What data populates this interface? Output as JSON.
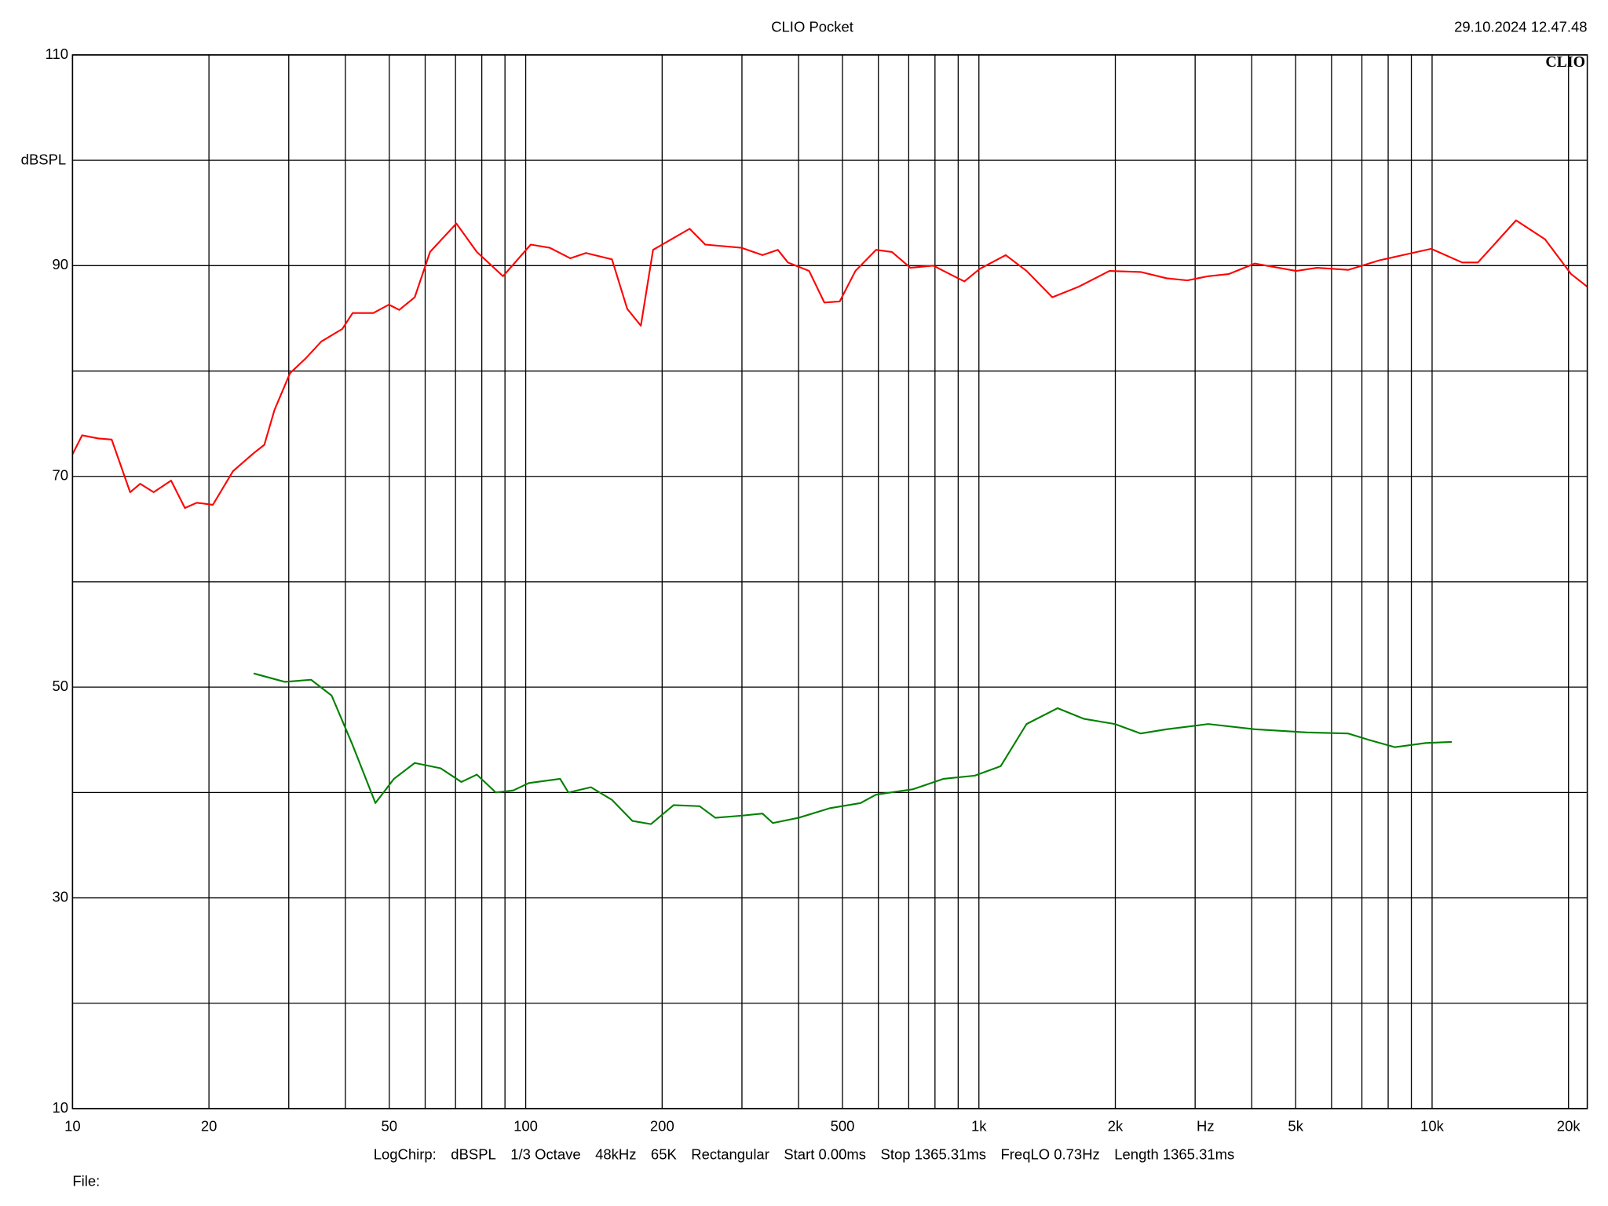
{
  "chart_data": {
    "type": "line",
    "title": "CLIO Pocket",
    "timestamp": "29.10.2024 12.47.48",
    "logo": "CLIO",
    "ylabel": "dBSPL",
    "xlabel": "Hz",
    "x_log": true,
    "grid": true,
    "xlim": [
      10,
      22000
    ],
    "ylim": [
      10,
      110
    ],
    "xticks": [
      10,
      20,
      50,
      100,
      200,
      500,
      {
        "value": 1000,
        "label": "1k"
      },
      {
        "value": 2000,
        "label": "2k"
      },
      {
        "value": 5000,
        "label": "5k"
      },
      {
        "value": 10000,
        "label": "10k"
      },
      {
        "value": 20000,
        "label": "20k"
      }
    ],
    "xminor": [
      30,
      40,
      60,
      70,
      80,
      90,
      300,
      400,
      600,
      700,
      800,
      900,
      3000,
      4000,
      6000,
      7000,
      8000,
      9000
    ],
    "yticks": [
      10,
      30,
      50,
      70,
      90,
      110
    ],
    "yminor": [
      20,
      40,
      60,
      80,
      100
    ],
    "series": [
      {
        "color": "#ff0000",
        "x": [
          10,
          10.5,
          11.4,
          12.2,
          13.4,
          14.1,
          15.1,
          16.5,
          17.7,
          18.8,
          20.4,
          22.6,
          25.1,
          26.5,
          27.9,
          30.2,
          32.7,
          35.4,
          39.4,
          41.5,
          46.1,
          49.9,
          52.6,
          56.9,
          61.5,
          70.3,
          78.0,
          89.1,
          102.6,
          113,
          125.4,
          135.8,
          155,
          167.5,
          179.5,
          191,
          230,
          249,
          299,
          333,
          360,
          379,
          422,
          456,
          493,
          534,
          593,
          643,
          706,
          793,
          881,
          929,
          1005,
          1146,
          1274,
          1452,
          1660,
          1941,
          2275,
          2596,
          2884,
          3206,
          3556,
          4063,
          5012,
          5572,
          6531,
          7643,
          9954,
          11650,
          12620,
          15320,
          17750,
          20270,
          22000
        ],
        "values": [
          72.1,
          73.9,
          73.6,
          73.5,
          68.5,
          69.3,
          68.5,
          69.6,
          67,
          67.5,
          67.3,
          70.5,
          72.2,
          73,
          76.3,
          79.8,
          81.2,
          82.8,
          84,
          85.5,
          85.5,
          86.3,
          85.8,
          87,
          91.3,
          94,
          91.3,
          89,
          92,
          91.7,
          90.7,
          91.2,
          90.6,
          85.9,
          84.3,
          91.5,
          93.5,
          92,
          91.7,
          91,
          91.5,
          90.3,
          89.5,
          86.5,
          86.6,
          89.5,
          91.5,
          91.3,
          89.8,
          90,
          89,
          88.5,
          89.7,
          91,
          89.5,
          87,
          88,
          89.5,
          89.4,
          88.8,
          88.6,
          89,
          89.2,
          90.2,
          89.5,
          89.8,
          89.6,
          90.5,
          91.6,
          90.3,
          90.3,
          94.3,
          92.5,
          89.2,
          88
        ]
      },
      {
        "color": "#008000",
        "x": [
          25.1,
          29.4,
          33.6,
          37.3,
          41.5,
          46.6,
          51.2,
          56.9,
          64.9,
          72.1,
          78.0,
          85.9,
          93.9,
          101.6,
          119.1,
          124.2,
          139.3,
          155,
          172,
          189,
          212,
          242,
          262,
          299,
          333,
          351,
          400,
          468,
          548,
          593,
          714,
          836,
          979,
          1117,
          1274,
          1492,
          1702,
          1995,
          2275,
          2596,
          3206,
          4063,
          5284,
          6531,
          7244,
          8276,
          9683,
          11050
        ],
        "values": [
          51.3,
          50.5,
          50.7,
          49.2,
          44.5,
          39,
          41.3,
          42.8,
          42.3,
          41,
          41.7,
          40,
          40.2,
          40.9,
          41.3,
          40,
          40.5,
          39.3,
          37.3,
          37,
          38.8,
          38.7,
          37.6,
          37.8,
          38,
          37.1,
          37.6,
          38.5,
          39,
          39.8,
          40.3,
          41.3,
          41.6,
          42.5,
          46.5,
          48,
          47,
          46.5,
          45.6,
          46,
          46.5,
          46,
          45.7,
          45.6,
          45,
          44.3,
          44.7,
          44.8
        ]
      }
    ],
    "footer": [
      "LogChirp:",
      "dBSPL",
      "1/3 Octave",
      "48kHz",
      "65K",
      "Rectangular",
      "Start 0.00ms",
      "Stop 1365.31ms",
      "FreqLO 0.73Hz",
      "Length 1365.31ms"
    ],
    "file_label": "File:"
  }
}
